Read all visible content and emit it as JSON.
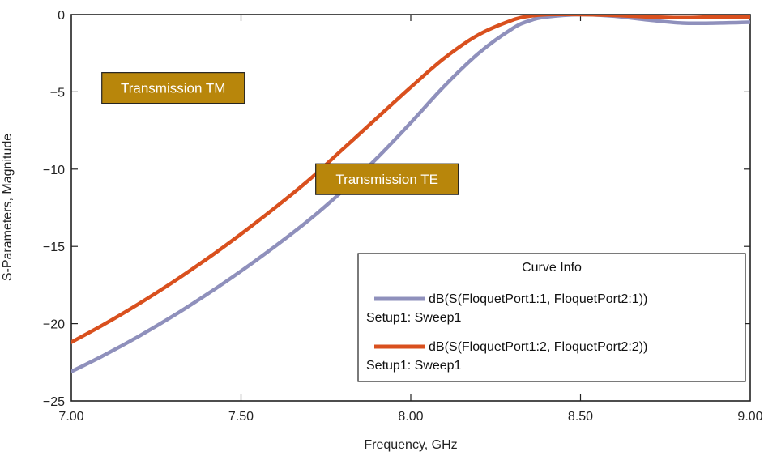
{
  "chart_data": {
    "type": "line",
    "xlabel": "Frequency, GHz",
    "ylabel": "S-Parameters, Magnitude",
    "xlim": [
      7.0,
      9.0
    ],
    "ylim": [
      -25,
      0
    ],
    "xticks": [
      7.0,
      7.5,
      8.0,
      8.5,
      9.0
    ],
    "xtick_labels": [
      "7.00",
      "7.50",
      "8.00",
      "8.50",
      "9.00"
    ],
    "yticks": [
      0,
      -5,
      -10,
      -15,
      -20,
      -25
    ],
    "ytick_labels": [
      "0",
      "−5",
      "−10",
      "−15",
      "−20",
      "−25"
    ],
    "grid": false,
    "series": [
      {
        "name": "dB(S(FloquetPort1:1, FloquetPort2:1))",
        "setup": "Setup1: Sweep1",
        "color": "#8f90bc",
        "x": [
          7.0,
          7.1,
          7.2,
          7.3,
          7.4,
          7.5,
          7.6,
          7.7,
          7.8,
          7.9,
          8.0,
          8.1,
          8.2,
          8.3,
          8.35,
          8.4,
          8.5,
          8.6,
          8.7,
          8.8,
          8.9,
          9.0
        ],
        "y": [
          -23.1,
          -22.0,
          -20.8,
          -19.5,
          -18.1,
          -16.6,
          -15.0,
          -13.3,
          -11.4,
          -9.3,
          -7.0,
          -4.6,
          -2.5,
          -0.9,
          -0.4,
          -0.15,
          0.0,
          -0.1,
          -0.35,
          -0.55,
          -0.55,
          -0.5
        ]
      },
      {
        "name": "dB(S(FloquetPort1:2, FloquetPort2:2))",
        "setup": "Setup1: Sweep1",
        "color": "#d9501e",
        "x": [
          7.0,
          7.1,
          7.2,
          7.3,
          7.4,
          7.5,
          7.6,
          7.7,
          7.8,
          7.9,
          8.0,
          8.1,
          8.2,
          8.3,
          8.35,
          8.4,
          8.5,
          8.6,
          8.7,
          8.8,
          8.9,
          9.0
        ],
        "y": [
          -21.2,
          -20.0,
          -18.7,
          -17.3,
          -15.8,
          -14.2,
          -12.5,
          -10.7,
          -8.7,
          -6.7,
          -4.7,
          -2.8,
          -1.3,
          -0.35,
          -0.1,
          0.0,
          0.0,
          -0.05,
          -0.15,
          -0.2,
          -0.15,
          -0.15
        ]
      }
    ],
    "annotations": [
      {
        "text": "Transmission TM",
        "x": 7.3,
        "y": -4.75
      },
      {
        "text": "Transmission TE",
        "x": 7.93,
        "y": -10.65
      }
    ],
    "legend": {
      "title": "Curve Info",
      "position": "bottom-right"
    }
  },
  "colors": {
    "annotation_fill": "#b8860b",
    "series_te": "#8f90bc",
    "series_tm": "#d9501e"
  }
}
